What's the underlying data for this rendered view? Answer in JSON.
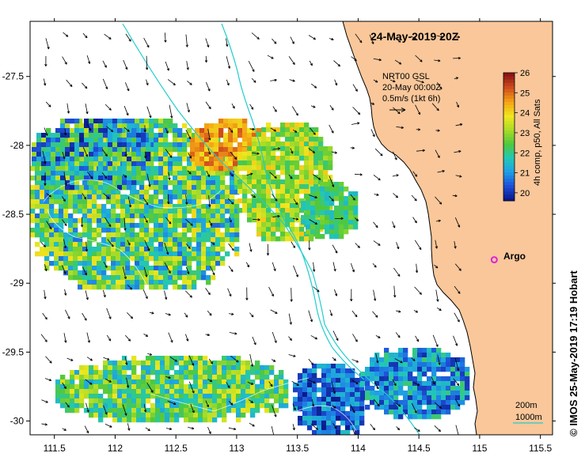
{
  "title": "24-May-2019 20Z",
  "vector_legend": {
    "source": "NRT00 GSL",
    "date": "20-May 00:00Z",
    "scale": "0.5m/s (1kt 6h)"
  },
  "colorbar": {
    "label": "4h comp, p50, All Sats",
    "ticks": [
      "20",
      "21",
      "22",
      "23",
      "24",
      "25",
      "26"
    ],
    "min": 19.6,
    "max": 26
  },
  "argo": {
    "label": "Argo",
    "lon": 115.12,
    "lat": -28.83,
    "color": "#dd22dd"
  },
  "isobaths": {
    "shallow_label": "200m",
    "deep_label": "1000m",
    "color": "#22cccc"
  },
  "credit": "© IMOS 25-May-2019 17:19 Hobart",
  "axes": {
    "x_ticks": [
      "111.5",
      "112",
      "112.5",
      "113",
      "113.5",
      "114",
      "114.5",
      "115",
      "115.5"
    ],
    "y_ticks": [
      "-27.5",
      "-28",
      "-28.5",
      "-29",
      "-29.5",
      "-30"
    ],
    "lon_range": [
      111.3,
      115.6
    ],
    "lat_range": [
      -30.1,
      -27.1
    ]
  },
  "colors": {
    "land": "#f9c79a",
    "coast": "#000000",
    "sst_scale": [
      "#0a1a8c",
      "#1e50d8",
      "#1ea0e6",
      "#22c8b4",
      "#50c83c",
      "#a8dc28",
      "#f0e61e",
      "#f5a514",
      "#d2501e",
      "#8c1414"
    ]
  }
}
